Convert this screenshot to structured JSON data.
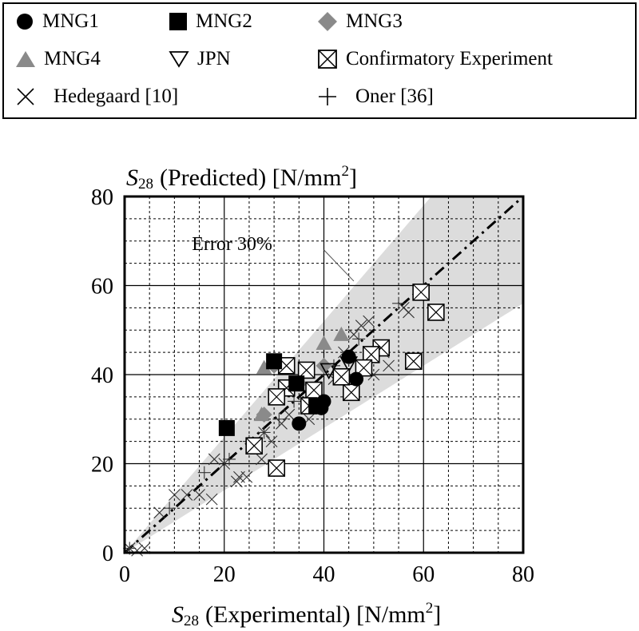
{
  "legend": {
    "items": [
      {
        "label": "MNG1",
        "marker": "filled-circle"
      },
      {
        "label": "MNG2",
        "marker": "filled-square"
      },
      {
        "label": "MNG3",
        "marker": "gray-diamond"
      },
      {
        "label": "MNG4",
        "marker": "gray-triangle"
      },
      {
        "label": "JPN",
        "marker": "open-down-triangle"
      },
      {
        "label": "Confirmatory Experiment",
        "marker": "boxed-x"
      },
      {
        "label": "Hedegaard [10]",
        "marker": "x-cross"
      },
      {
        "label": "Oner [36]",
        "marker": "plus"
      }
    ]
  },
  "colors": {
    "gray": "#8a8a8a",
    "band": "#dcdcdc"
  },
  "chart_data": {
    "type": "scatter",
    "title": {
      "var": "S",
      "sub": "28",
      "text": "(Predicted) [N/mm",
      "sup": "2",
      "end": "]"
    },
    "xlabel": {
      "var": "S",
      "sub": "28",
      "text": "(Experimental) [N/mm",
      "sup": "2",
      "end": "]"
    },
    "xlim": [
      0,
      80
    ],
    "ylim": [
      0,
      80
    ],
    "xticks": [
      "0",
      "20",
      "40",
      "60",
      "80"
    ],
    "yticks": [
      "0",
      "20",
      "40",
      "60",
      "80"
    ],
    "annotation": "Error 30%",
    "error_band": 0.3,
    "series": [
      {
        "name": "MNG1",
        "marker": "filled-circle",
        "points": [
          [
            45,
            44
          ],
          [
            46.5,
            39
          ],
          [
            40,
            34
          ],
          [
            35,
            29
          ],
          [
            39.5,
            32.5
          ]
        ]
      },
      {
        "name": "MNG2",
        "marker": "filled-square",
        "points": [
          [
            20.5,
            28
          ],
          [
            30,
            43
          ],
          [
            34.5,
            38
          ],
          [
            38.5,
            33
          ]
        ]
      },
      {
        "name": "MNG3",
        "marker": "gray-diamond",
        "points": [
          [
            28,
            31
          ],
          [
            30,
            42
          ],
          [
            35,
            38
          ],
          [
            40,
            42
          ]
        ]
      },
      {
        "name": "MNG4",
        "marker": "gray-triangle",
        "points": [
          [
            28,
            41.5
          ],
          [
            27.5,
            31
          ],
          [
            40,
            47
          ],
          [
            43.5,
            49
          ]
        ]
      },
      {
        "name": "JPN",
        "marker": "open-down-triangle",
        "points": [
          [
            41,
            41
          ],
          [
            45,
            42.5
          ]
        ]
      },
      {
        "name": "Confirmatory Experiment",
        "marker": "boxed-x",
        "points": [
          [
            59.5,
            58.5
          ],
          [
            62.5,
            54
          ],
          [
            58,
            43
          ],
          [
            51.5,
            46
          ],
          [
            49.5,
            44.5
          ],
          [
            48,
            41.5
          ],
          [
            45.5,
            36
          ],
          [
            43.5,
            39.5
          ],
          [
            38,
            36.5
          ],
          [
            36.5,
            41
          ],
          [
            32.5,
            42
          ],
          [
            32.5,
            37
          ],
          [
            30.5,
            35
          ],
          [
            37,
            33
          ],
          [
            26,
            24
          ],
          [
            30.5,
            19
          ]
        ]
      },
      {
        "name": "Hedegaard [10]",
        "marker": "x-cross",
        "points": [
          [
            1,
            1
          ],
          [
            2.5,
            0.5
          ],
          [
            4,
            1
          ],
          [
            7,
            9
          ],
          [
            10,
            13
          ],
          [
            12.5,
            13
          ],
          [
            15,
            13
          ],
          [
            17.5,
            12
          ],
          [
            18,
            21
          ],
          [
            20,
            20
          ],
          [
            22.5,
            16
          ],
          [
            23,
            17
          ],
          [
            24.5,
            17
          ],
          [
            27.5,
            21
          ],
          [
            28,
            27
          ],
          [
            29.5,
            25
          ],
          [
            31.5,
            29
          ],
          [
            33,
            31
          ],
          [
            37,
            30
          ],
          [
            39,
            34
          ],
          [
            42,
            39
          ],
          [
            44,
            45
          ],
          [
            46,
            49
          ],
          [
            47.5,
            51
          ],
          [
            49,
            52
          ],
          [
            50,
            40
          ],
          [
            52,
            45
          ],
          [
            53,
            42
          ],
          [
            56,
            55
          ],
          [
            57,
            54
          ]
        ]
      },
      {
        "name": "Oner [36]",
        "marker": "plus",
        "points": [
          [
            1,
            1
          ],
          [
            9,
            10
          ],
          [
            16,
            18
          ],
          [
            21,
            21
          ],
          [
            25,
            25
          ],
          [
            28,
            27
          ],
          [
            31,
            30
          ],
          [
            34,
            34
          ],
          [
            38,
            36
          ],
          [
            42,
            42
          ],
          [
            47,
            48
          ],
          [
            55,
            56
          ]
        ]
      }
    ]
  }
}
